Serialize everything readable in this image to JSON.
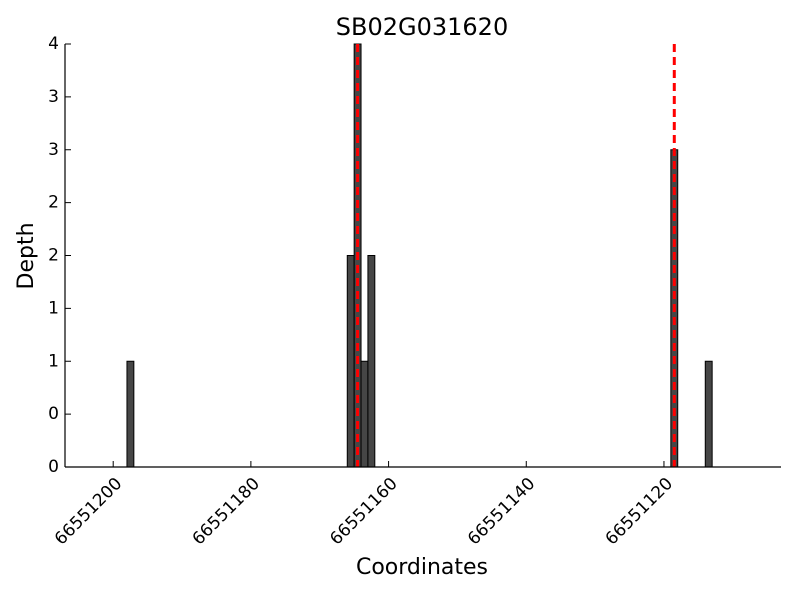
{
  "chart_data": {
    "type": "bar",
    "title": "SB02G031620",
    "xlabel": "Coordinates",
    "ylabel": "Depth",
    "x": [
      66551198,
      66551166,
      66551165,
      66551164,
      66551163,
      66551119,
      66551114
    ],
    "values": [
      1,
      2,
      4,
      1,
      2,
      3,
      1
    ],
    "color": "#464646",
    "xlim": [
      66551207,
      66551103
    ],
    "xticks": [
      66551200,
      66551180,
      66551160,
      66551140,
      66551120
    ],
    "ylim": [
      0,
      4
    ],
    "yticks": [
      0,
      {
        "value": 0.5,
        "label": "0"
      },
      1,
      {
        "value": 1.5,
        "label": "1"
      },
      2,
      {
        "value": 2.5,
        "label": "2"
      },
      3,
      {
        "value": 3.5,
        "label": "3"
      },
      4
    ],
    "vlines": [
      66551164.5,
      66551118.5
    ],
    "vline_color": "#ff0000"
  }
}
